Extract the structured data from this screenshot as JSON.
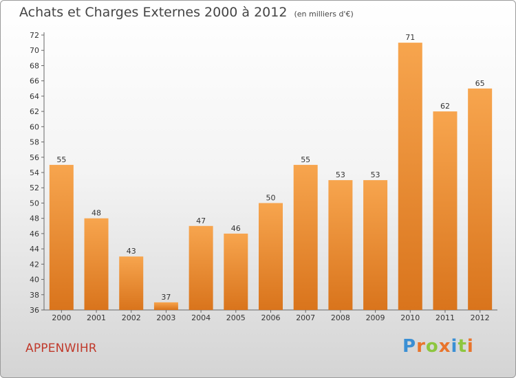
{
  "title": "Achats et Charges Externes 2000 à 2012",
  "unit": "(en milliers d'€)",
  "commune": "APPENWIHR",
  "logo": {
    "text": "Proxiti",
    "letters": [
      {
        "ch": "P",
        "color": "#3a8fd4"
      },
      {
        "ch": "r",
        "color": "#e9742b"
      },
      {
        "ch": "o",
        "color": "#8dc63f"
      },
      {
        "ch": "x",
        "color": "#e9742b"
      },
      {
        "ch": "i",
        "color": "#3a8fd4"
      },
      {
        "ch": "t",
        "color": "#8dc63f"
      },
      {
        "ch": "i",
        "color": "#e9742b"
      }
    ]
  },
  "chart_data": {
    "type": "bar",
    "categories": [
      "2000",
      "2001",
      "2002",
      "2003",
      "2004",
      "2005",
      "2006",
      "2007",
      "2008",
      "2009",
      "2010",
      "2011",
      "2012"
    ],
    "values": [
      55,
      48,
      43,
      37,
      47,
      46,
      50,
      55,
      53,
      53,
      71,
      62,
      65
    ],
    "ylim": [
      36,
      72
    ],
    "yticks": [
      36,
      38,
      40,
      42,
      44,
      46,
      48,
      50,
      52,
      54,
      56,
      58,
      60,
      62,
      64,
      66,
      68,
      70,
      72
    ],
    "grid": false,
    "bar_color_top": "#f7a54e",
    "bar_color_bottom": "#d9741c"
  }
}
